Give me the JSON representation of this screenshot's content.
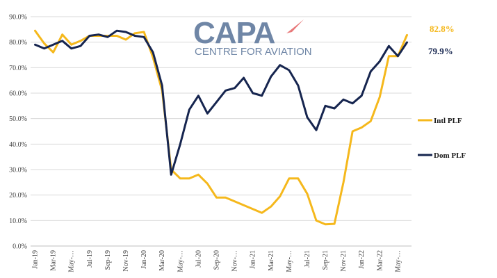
{
  "logo": {
    "main": "CAPA",
    "sub": "CENTRE FOR AVIATION",
    "accent_color": "#e8797a"
  },
  "chart_data": {
    "type": "line",
    "ylim": [
      0,
      90
    ],
    "yticks": [
      "0.0%",
      "10.0%",
      "20.0%",
      "30.0%",
      "40.0%",
      "50.0%",
      "60.0%",
      "70.0%",
      "80.0%",
      "90.0%"
    ],
    "x_tick_labels": [
      "Jan-19",
      "Mar-19",
      "May-…",
      "Jul-19",
      "Sep-19",
      "Nov-19",
      "Jan-20",
      "Mar-20",
      "May-…",
      "Jul-20",
      "Sep-20",
      "Nov-…",
      "Jan-21",
      "Mar-21",
      "May-…",
      "Jul-21",
      "Sep-21",
      "Nov-21",
      "Jan-22",
      "Mar-22",
      "May-…"
    ],
    "x": [
      "Jan-19",
      "Feb-19",
      "Mar-19",
      "Apr-19",
      "May-19",
      "Jun-19",
      "Jul-19",
      "Aug-19",
      "Sep-19",
      "Oct-19",
      "Nov-19",
      "Dec-19",
      "Jan-20",
      "Feb-20",
      "Mar-20",
      "Apr-20",
      "May-20",
      "Jun-20",
      "Jul-20",
      "Aug-20",
      "Sep-20",
      "Oct-20",
      "Nov-20",
      "Dec-20",
      "Jan-21",
      "Feb-21",
      "Mar-21",
      "Apr-21",
      "May-21",
      "Jun-21",
      "Jul-21",
      "Aug-21",
      "Sep-21",
      "Oct-21",
      "Nov-21",
      "Dec-21",
      "Jan-22",
      "Feb-22",
      "Mar-22",
      "Apr-22",
      "May-22",
      "Jun-22"
    ],
    "grid": true,
    "legend_placement": "right",
    "series": [
      {
        "name": "Intl PLF",
        "color": "#f5b81c",
        "end_label": "82.8%",
        "values": [
          84.5,
          79.5,
          76,
          83,
          79,
          80.5,
          82.5,
          82.5,
          82.5,
          82.5,
          81,
          83.5,
          84,
          74,
          61,
          30,
          26.5,
          26.5,
          28,
          24.5,
          19,
          19,
          17.5,
          16,
          14.5,
          13,
          15.5,
          19.5,
          26.5,
          26.5,
          20.5,
          10,
          8.5,
          8.7,
          25,
          45,
          46.5,
          49,
          58.5,
          74.5,
          74.5,
          82.8
        ]
      },
      {
        "name": "Dom PLF",
        "color": "#16254f",
        "end_label": "79.9%",
        "values": [
          79,
          77.5,
          79,
          80.5,
          77.5,
          78.5,
          82.5,
          83,
          82,
          84.5,
          84,
          82.5,
          82,
          76,
          63,
          28,
          40,
          53.5,
          59,
          52,
          56.5,
          61,
          62,
          66,
          60,
          59,
          66.5,
          71,
          69,
          63,
          50.5,
          45.5,
          55,
          54,
          57.5,
          56,
          59,
          68.5,
          72.5,
          78.5,
          74.5,
          79.9
        ]
      }
    ]
  }
}
